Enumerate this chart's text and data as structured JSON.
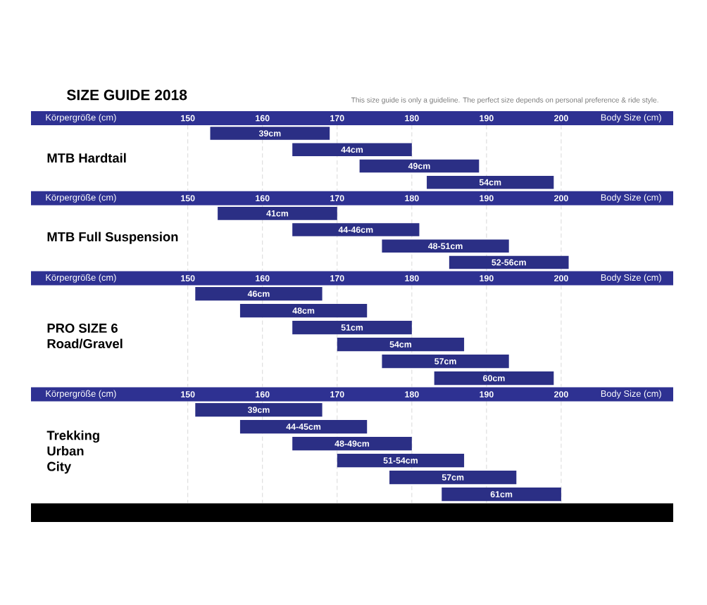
{
  "chart_data": [
    {
      "type": "bar",
      "orientation": "horizontal",
      "title": "SIZE GUIDE 2018",
      "subtitle": "This size guide is only a guideline. The perfect size depends on personal preference & ride style.",
      "xlabel": "Körpergröße (cm)",
      "ylabel": "MTB Hardtail",
      "annotations": [
        "Body Size (cm)"
      ],
      "categories": [
        "39cm",
        "44cm",
        "49cm",
        "54cm"
      ],
      "base": [
        153,
        164,
        173,
        182
      ],
      "values": [
        16,
        16,
        16,
        17
      ],
      "color": "#2b2f85",
      "xlim": [
        129,
        215
      ],
      "xticks": [
        150,
        160,
        170,
        180,
        190,
        200
      ],
      "grid": "x"
    },
    {
      "type": "bar",
      "orientation": "horizontal",
      "xlabel": "Körpergröße (cm)",
      "ylabel": "MTB Full Suspension",
      "annotations": [
        "Body Size (cm)"
      ],
      "categories": [
        "41cm",
        "44-46cm",
        "48-51cm",
        "52-56cm"
      ],
      "base": [
        154,
        164,
        176,
        185
      ],
      "values": [
        16,
        17,
        17,
        16
      ],
      "color": "#2b2f85",
      "xlim": [
        129,
        215
      ],
      "xticks": [
        150,
        160,
        170,
        180,
        190,
        200
      ],
      "grid": "x"
    },
    {
      "type": "bar",
      "orientation": "horizontal",
      "xlabel": "Körpergröße (cm)",
      "ylabel": "PRO SIZE 6\nRoad/Gravel",
      "annotations": [
        "Body Size (cm)"
      ],
      "categories": [
        "46cm",
        "48cm",
        "51cm",
        "54cm",
        "57cm",
        "60cm"
      ],
      "base": [
        151,
        157,
        164,
        170,
        176,
        183
      ],
      "values": [
        17,
        17,
        16,
        17,
        17,
        16
      ],
      "color": "#2b2f85",
      "xlim": [
        129,
        215
      ],
      "xticks": [
        150,
        160,
        170,
        180,
        190,
        200
      ],
      "grid": "x"
    },
    {
      "type": "bar",
      "orientation": "horizontal",
      "xlabel": "Körpergröße (cm)",
      "ylabel": "Trekking\nUrban\nCity",
      "annotations": [
        "Body Size (cm)"
      ],
      "categories": [
        "39cm",
        "44-45cm",
        "48-49cm",
        "51-54cm",
        "57cm",
        "61cm"
      ],
      "base": [
        151,
        157,
        164,
        170,
        177,
        184
      ],
      "values": [
        17,
        17,
        16,
        17,
        17,
        16
      ],
      "color": "#2b2f85",
      "xlim": [
        129,
        215
      ],
      "xticks": [
        150,
        160,
        170,
        180,
        190,
        200
      ],
      "grid": "x"
    }
  ]
}
